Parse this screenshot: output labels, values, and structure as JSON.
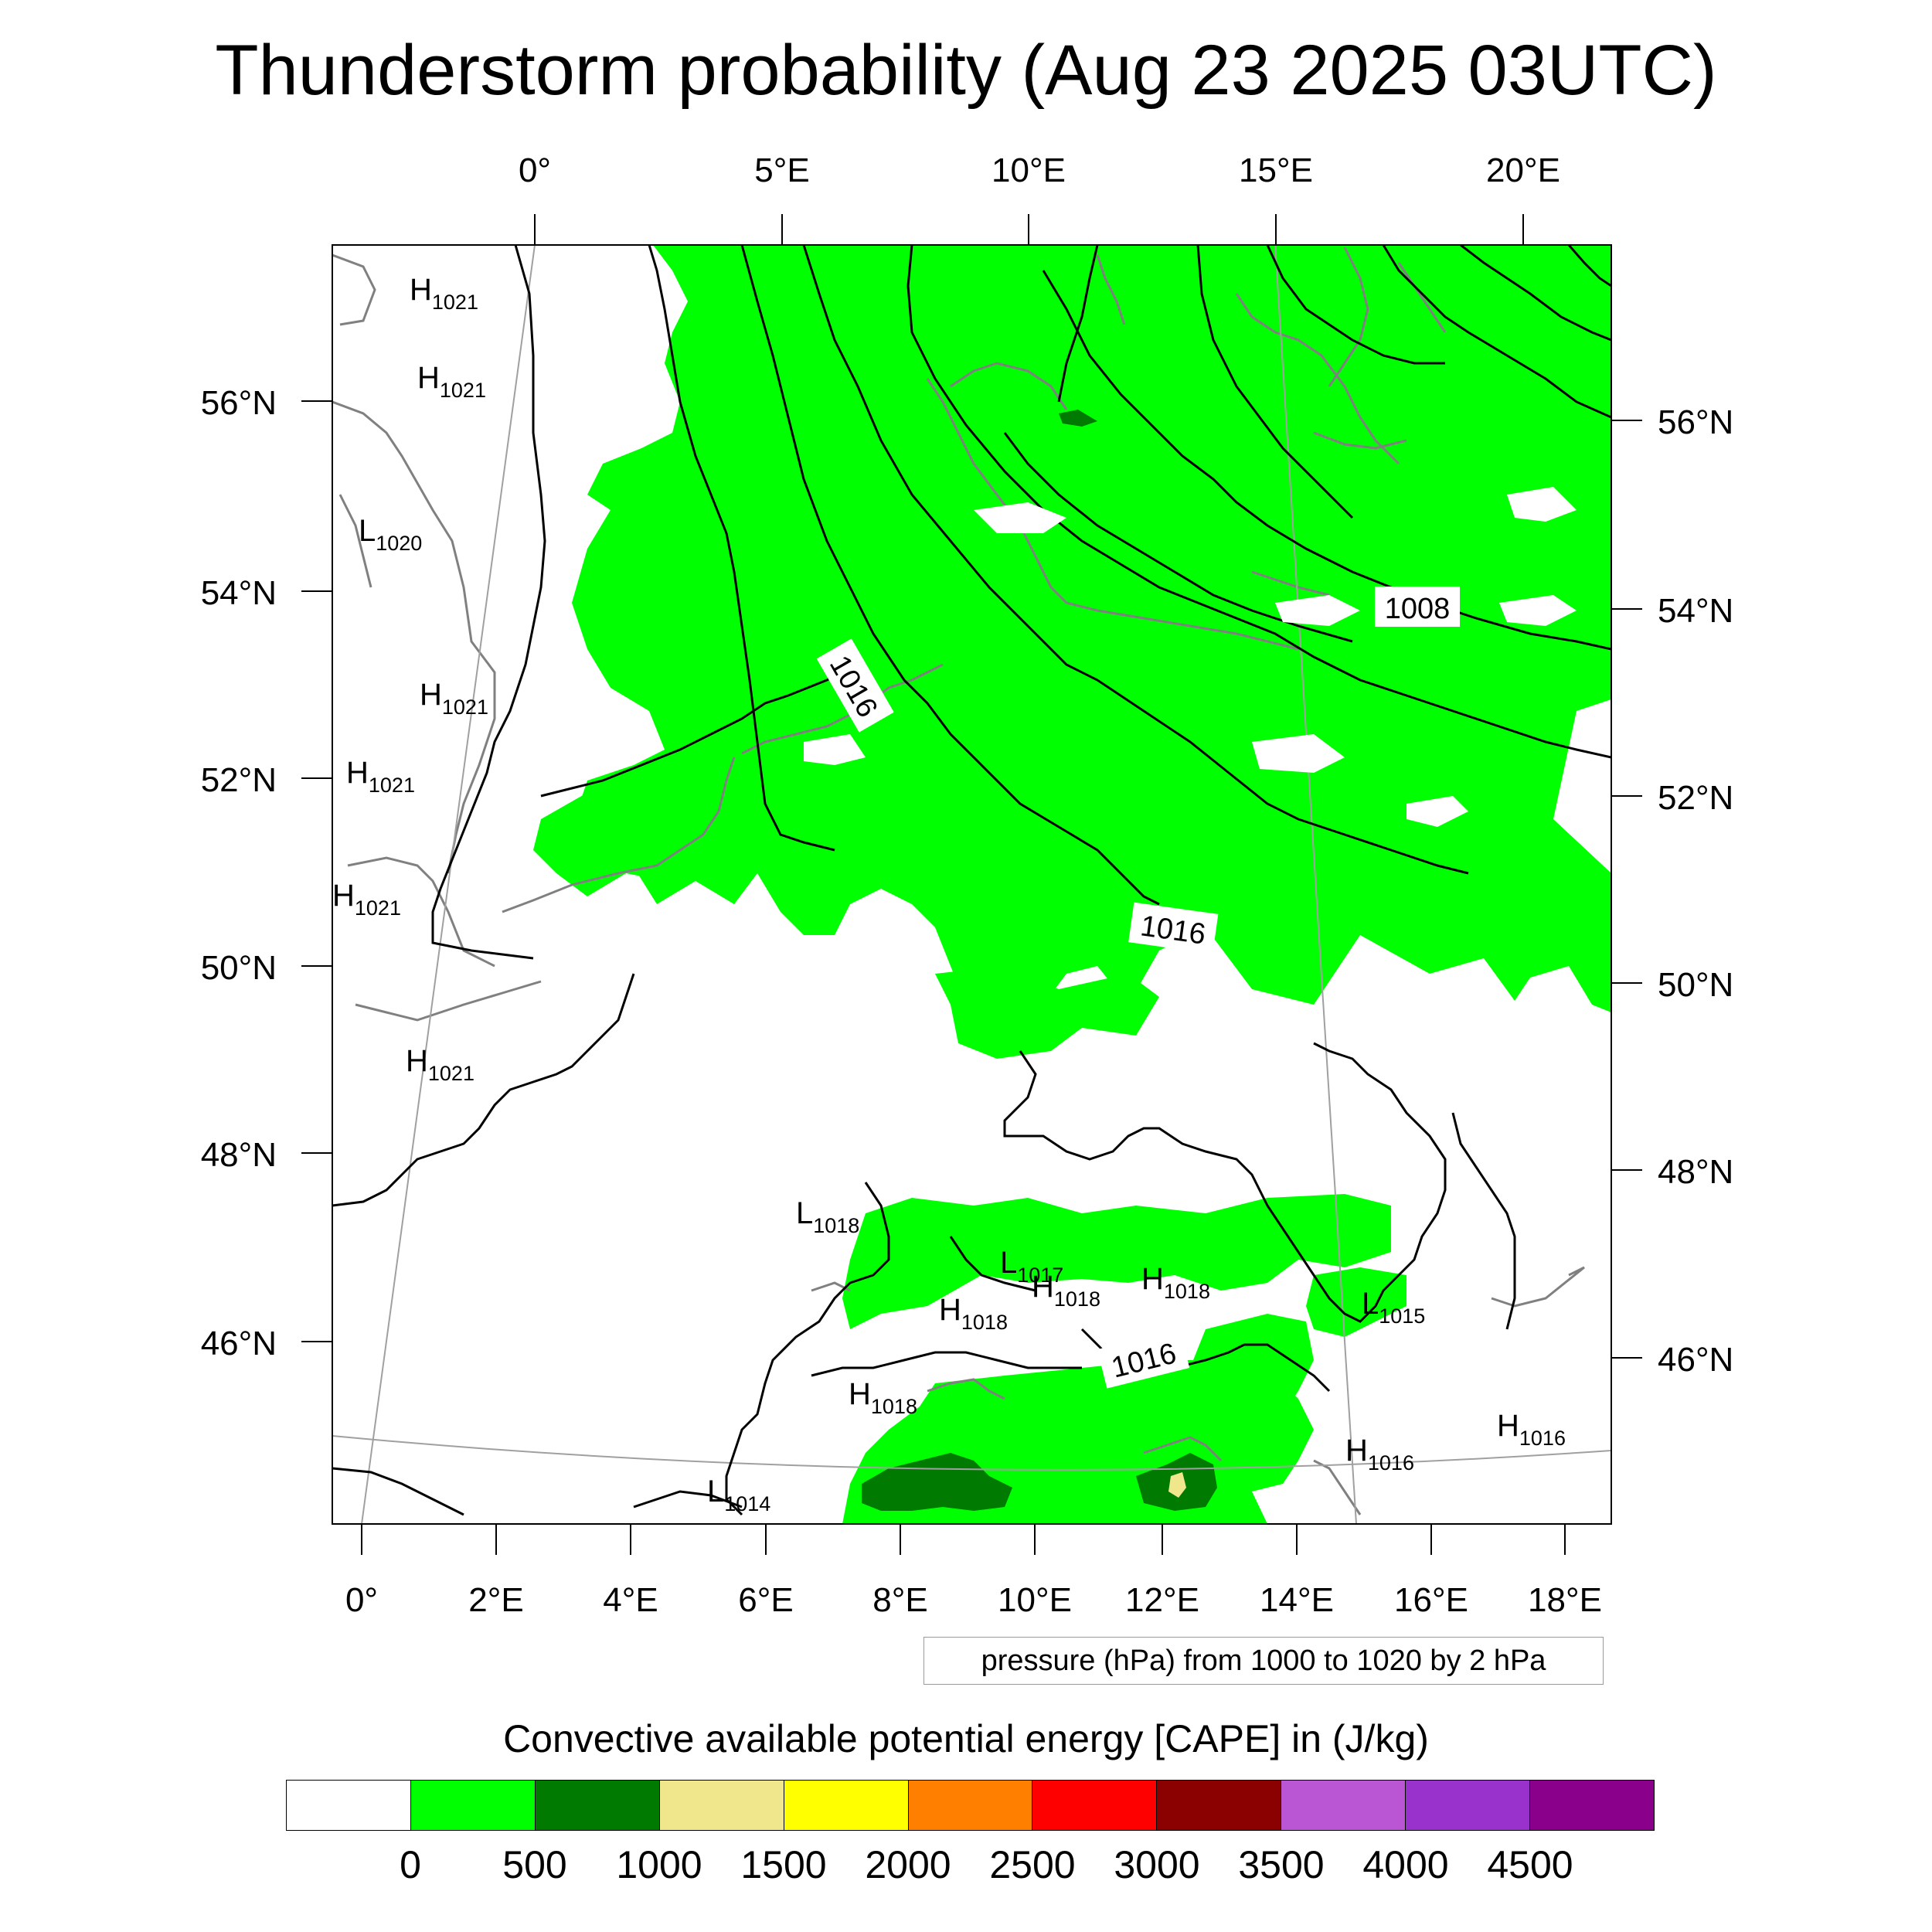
{
  "title": "Thunderstorm probability (Aug 23 2025 03UTC)",
  "top_lon_labels": [
    "0°",
    "5°E",
    "10°E",
    "15°E",
    "20°E"
  ],
  "bottom_lon_labels": [
    "0°",
    "2°E",
    "4°E",
    "6°E",
    "8°E",
    "10°E",
    "12°E",
    "14°E",
    "16°E",
    "18°E"
  ],
  "left_lat_labels": [
    "56°N",
    "54°N",
    "52°N",
    "50°N",
    "48°N",
    "46°N"
  ],
  "right_lat_labels": [
    "56°N",
    "54°N",
    "52°N",
    "50°N",
    "48°N",
    "46°N"
  ],
  "pressure_centers": [
    {
      "type": "H",
      "value": "1021"
    },
    {
      "type": "H",
      "value": "1021"
    },
    {
      "type": "L",
      "value": "1020"
    },
    {
      "type": "H",
      "value": "1021"
    },
    {
      "type": "H",
      "value": "1021"
    },
    {
      "type": "H",
      "value": "1021"
    },
    {
      "type": "H",
      "value": "1021"
    },
    {
      "type": "L",
      "value": "1018"
    },
    {
      "type": "L",
      "value": "1017"
    },
    {
      "type": "H",
      "value": "1018"
    },
    {
      "type": "H",
      "value": "1018"
    },
    {
      "type": "H",
      "value": "1018"
    },
    {
      "type": "L",
      "value": "1015"
    },
    {
      "type": "H",
      "value": "1018"
    },
    {
      "type": "H",
      "value": "1016"
    },
    {
      "type": "H",
      "value": "1016"
    },
    {
      "type": "L",
      "value": "1014"
    }
  ],
  "contour_labels": [
    "1016",
    "1008",
    "1016",
    "1016"
  ],
  "info_box": "pressure (hPa) from 1000 to 1020 by 2 hPa",
  "colorbar": {
    "title": "Convective available potential energy [CAPE] in (J/kg)",
    "colors": [
      "#ffffff",
      "#00ff00",
      "#007a00",
      "#f0e68c",
      "#ffff00",
      "#ff8000",
      "#ff0000",
      "#8b0000",
      "#ba55d3",
      "#9932cc",
      "#8b008b"
    ],
    "levels": [
      "0",
      "500",
      "1000",
      "1500",
      "2000",
      "2500",
      "3000",
      "3500",
      "4000",
      "4500"
    ]
  },
  "map_colors": {
    "cape_0_500": "#00ff00",
    "cape_500_1000": "#007a00",
    "cape_1000_1500": "#f0e68c",
    "isobar": "#000000",
    "coastline": "#808080",
    "graticule": "#a0a0a0"
  }
}
